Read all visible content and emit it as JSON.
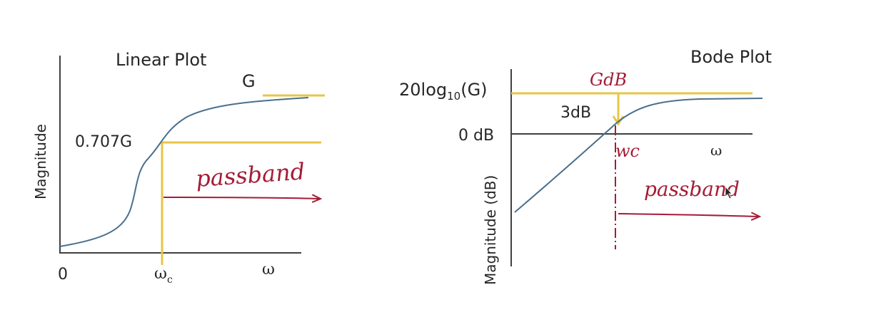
{
  "colors": {
    "axis": "#404040",
    "curve": "#4a6f8c",
    "highlight": "#e8c547",
    "annotation": "#a51c36",
    "text": "#262626"
  },
  "linear_plot": {
    "title": "Linear Plot",
    "y_axis_label": "Magnitude",
    "gain_label": "G",
    "cutoff_level_label": "0.707G",
    "origin_label": "0",
    "cutoff_freq_symbol": "ω",
    "cutoff_freq_subscript": "c",
    "x_axis_symbol": "ω",
    "passband_label": "passband"
  },
  "bode_plot": {
    "title": "Bode Plot",
    "y_axis_label": "Magnitude (dB)",
    "gain_label_prefix": "20log",
    "gain_label_subscript": "10",
    "gain_label_suffix": "(G)",
    "gdb_label": "GdB",
    "drop_label": "3dB",
    "zero_db_label": "0 dB",
    "cutoff_label": "wc",
    "x_axis_symbol": "ω",
    "passband_label": "passband"
  }
}
